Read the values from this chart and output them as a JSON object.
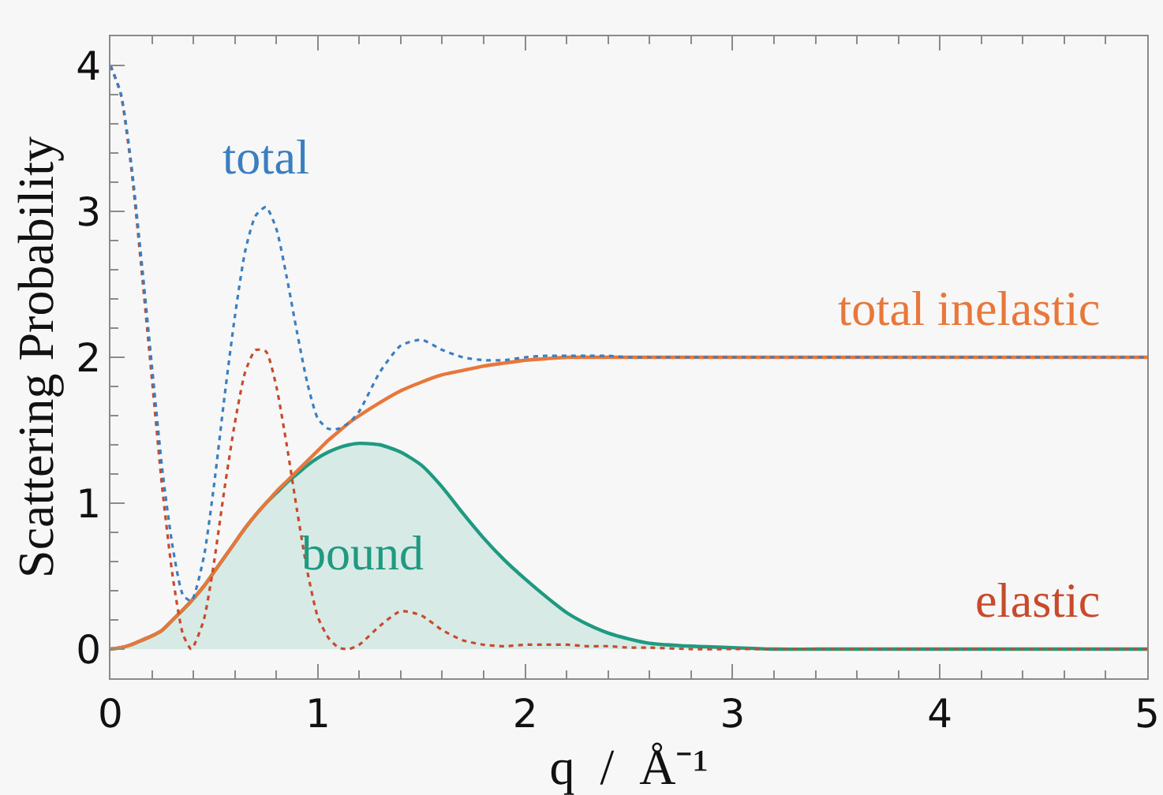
{
  "chart_data": {
    "type": "line",
    "xlabel": "q  /  Å⁻¹",
    "ylabel": "Scattering Probability",
    "x": [
      0,
      0.05,
      0.1,
      0.15,
      0.2,
      0.25,
      0.3,
      0.35,
      0.39,
      0.45,
      0.5,
      0.55,
      0.6,
      0.65,
      0.7,
      0.75,
      0.8,
      0.85,
      0.9,
      0.95,
      1.0,
      1.05,
      1.1,
      1.15,
      1.2,
      1.3,
      1.4,
      1.5,
      1.6,
      1.7,
      1.8,
      1.9,
      2.0,
      2.1,
      2.2,
      2.3,
      2.4,
      2.5,
      2.6,
      2.8,
      3.0,
      3.2,
      3.5,
      4.0,
      4.5,
      5.0
    ],
    "xlim": [
      0,
      5
    ],
    "ylim": [
      -0.2,
      4.2
    ],
    "xticks": [
      0,
      {
        "value": 0.2,
        "label": null
      },
      {
        "value": 0.4,
        "label": null
      },
      {
        "value": 0.6,
        "label": null
      },
      {
        "value": 0.8,
        "label": null
      },
      1,
      {
        "value": 1.2,
        "label": null
      },
      {
        "value": 1.4,
        "label": null
      },
      {
        "value": 1.6,
        "label": null
      },
      {
        "value": 1.8,
        "label": null
      },
      2,
      {
        "value": 2.2,
        "label": null
      },
      {
        "value": 2.4,
        "label": null
      },
      {
        "value": 2.6,
        "label": null
      },
      {
        "value": 2.8,
        "label": null
      },
      3,
      {
        "value": 3.2,
        "label": null
      },
      {
        "value": 3.4,
        "label": null
      },
      {
        "value": 3.6,
        "label": null
      },
      {
        "value": 3.8,
        "label": null
      },
      4,
      {
        "value": 4.2,
        "label": null
      },
      {
        "value": 4.4,
        "label": null
      },
      {
        "value": 4.6,
        "label": null
      },
      {
        "value": 4.8,
        "label": null
      },
      5
    ],
    "yticks": [
      0,
      {
        "value": 0.2,
        "label": null
      },
      {
        "value": 0.4,
        "label": null
      },
      {
        "value": 0.6,
        "label": null
      },
      {
        "value": 0.8,
        "label": null
      },
      1,
      {
        "value": 1.2,
        "label": null
      },
      {
        "value": 1.4,
        "label": null
      },
      {
        "value": 1.6,
        "label": null
      },
      {
        "value": 1.8,
        "label": null
      },
      2,
      {
        "value": 2.2,
        "label": null
      },
      {
        "value": 2.4,
        "label": null
      },
      {
        "value": 2.6,
        "label": null
      },
      {
        "value": 2.8,
        "label": null
      },
      3,
      {
        "value": 3.2,
        "label": null
      },
      {
        "value": 3.4,
        "label": null
      },
      {
        "value": 3.6,
        "label": null
      },
      {
        "value": 3.8,
        "label": null
      },
      4
    ],
    "series": [
      {
        "name": "bound",
        "type": "area",
        "color": "#1f9a80",
        "line_style": "solid",
        "values": [
          0,
          0.01,
          0.03,
          0.06,
          0.09,
          0.13,
          0.2,
          0.27,
          0.33,
          0.43,
          0.53,
          0.63,
          0.73,
          0.83,
          0.92,
          1.0,
          1.07,
          1.14,
          1.2,
          1.26,
          1.31,
          1.35,
          1.38,
          1.4,
          1.41,
          1.4,
          1.35,
          1.26,
          1.11,
          0.93,
          0.76,
          0.61,
          0.48,
          0.36,
          0.25,
          0.17,
          0.11,
          0.07,
          0.04,
          0.02,
          0.01,
          0,
          0,
          0,
          0,
          0
        ]
      },
      {
        "name": "total inelastic",
        "color": "#e8773a",
        "line_style": "solid",
        "values": [
          0,
          0.01,
          0.03,
          0.06,
          0.09,
          0.13,
          0.2,
          0.27,
          0.33,
          0.43,
          0.53,
          0.63,
          0.73,
          0.83,
          0.92,
          1.0,
          1.08,
          1.15,
          1.22,
          1.29,
          1.36,
          1.43,
          1.49,
          1.55,
          1.6,
          1.69,
          1.77,
          1.83,
          1.88,
          1.91,
          1.94,
          1.96,
          1.98,
          1.99,
          2.0,
          2.0,
          2.0,
          2.0,
          2.0,
          2.0,
          2.0,
          2.0,
          2.0,
          2.0,
          2.0,
          2.0
        ]
      },
      {
        "name": "elastic",
        "color": "#c84a2c",
        "line_style": "dotted",
        "values": [
          4.0,
          3.8,
          3.3,
          2.6,
          1.85,
          1.1,
          0.5,
          0.1,
          0.0,
          0.2,
          0.6,
          1.1,
          1.55,
          1.9,
          2.05,
          2.04,
          1.8,
          1.4,
          0.95,
          0.53,
          0.22,
          0.08,
          0.01,
          0.0,
          0.03,
          0.16,
          0.26,
          0.23,
          0.13,
          0.06,
          0.03,
          0.02,
          0.03,
          0.03,
          0.03,
          0.02,
          0.02,
          0.01,
          0.01,
          0,
          0,
          0,
          0,
          0,
          0,
          0
        ]
      },
      {
        "name": "total",
        "color": "#3a7fc0",
        "line_style": "dotted",
        "values": [
          4.0,
          3.81,
          3.33,
          2.66,
          1.94,
          1.23,
          0.7,
          0.37,
          0.33,
          0.63,
          1.13,
          1.73,
          2.28,
          2.73,
          2.97,
          3.03,
          2.88,
          2.55,
          2.17,
          1.82,
          1.58,
          1.51,
          1.51,
          1.55,
          1.63,
          1.9,
          2.08,
          2.12,
          2.05,
          2.0,
          1.98,
          1.98,
          2.0,
          2.01,
          2.01,
          2.01,
          2.01,
          2.0,
          2.0,
          2.0,
          2.0,
          2.0,
          2.0,
          2.0,
          2.0,
          2.0
        ]
      }
    ]
  }
}
